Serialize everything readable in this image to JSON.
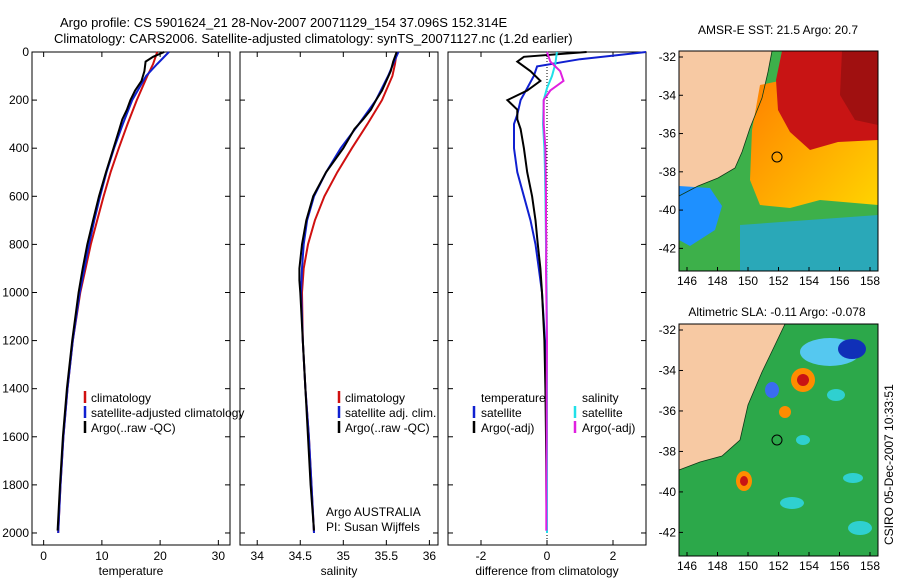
{
  "header": {
    "line1": "Argo profile: CS 5901624_21 28-Nov-2007 20071129_154 37.096S 152.314E",
    "line2": "Climatology: CARS2006. Satellite-adjusted climatology: synTS_20071127.nc (1.2d earlier)"
  },
  "colors": {
    "climatology": "#d01010",
    "satellite": "#1020d0",
    "argo": "#000000",
    "satellite_sal": "#20e0e8",
    "argo_sal_adj": "#e020e0",
    "land": "#f7c9a3"
  },
  "depth_axis": {
    "ylim": [
      2050,
      0
    ],
    "ticks": [
      0,
      200,
      400,
      600,
      800,
      1000,
      1200,
      1400,
      1600,
      1800,
      2000
    ]
  },
  "panels": {
    "temperature": {
      "xlabel": "temperature",
      "xticks": [
        0,
        10,
        20,
        30
      ],
      "legend": [
        "climatology",
        "satellite-adjusted climatology",
        "Argo(..raw -QC)"
      ]
    },
    "salinity": {
      "xlabel": "salinity",
      "xticks": [
        34,
        34.5,
        35,
        35.5,
        36
      ],
      "xtick_labels": [
        "34",
        "34.5",
        "35",
        "35.5",
        "36"
      ],
      "legend": [
        "climatology",
        "satellite adj. clim.",
        "Argo(..raw -QC)"
      ],
      "credit_line1": "Argo AUSTRALIA",
      "credit_line2": "PI: Susan Wijffels"
    },
    "difference": {
      "xlabel": "difference from climatology",
      "xticks": [
        -2,
        0,
        2
      ],
      "legend_t_title": "temperature",
      "legend_s_title": "salinity",
      "legend_t": [
        "satellite",
        "Argo(-adj)"
      ],
      "legend_s": [
        "satellite",
        "Argo(-adj)"
      ]
    }
  },
  "maps": {
    "sst": {
      "title": "AMSR-E SST: 21.5 Argo: 20.7",
      "yticks": [
        "-32",
        "-34",
        "-36",
        "-38",
        "-40",
        "-42"
      ],
      "xticks": [
        "146",
        "148",
        "150",
        "152",
        "154",
        "156",
        "158"
      ]
    },
    "sla": {
      "title": "Altimetric SLA: -0.11 Argo: -0.078",
      "yticks": [
        "-32",
        "-34",
        "-36",
        "-38",
        "-40",
        "-42"
      ],
      "xticks": [
        "146",
        "148",
        "150",
        "152",
        "154",
        "156",
        "158"
      ]
    },
    "float_position": {
      "lon": 152.314,
      "lat": -37.096
    }
  },
  "side_label": "CSIRO 05-Dec-2007 10:33:51",
  "chart_data": [
    {
      "type": "line",
      "xlabel": "temperature",
      "ylabel": "",
      "xlim": [
        -2,
        32
      ],
      "ylim": [
        2050,
        0
      ],
      "series": [
        {
          "name": "climatology",
          "depth": [
            0,
            50,
            100,
            200,
            300,
            400,
            500,
            600,
            700,
            800,
            900,
            1000,
            1200,
            1400,
            1600,
            1800,
            2000
          ],
          "values": [
            19.5,
            18.8,
            17.8,
            16.0,
            14.4,
            12.9,
            11.5,
            10.3,
            9.2,
            8.1,
            7.2,
            6.3,
            5.0,
            4.1,
            3.4,
            2.9,
            2.5
          ]
        },
        {
          "name": "satellite-adjusted climatology",
          "depth": [
            0,
            50,
            100,
            200,
            300,
            400,
            500,
            600,
            700,
            800,
            900,
            1000,
            1200,
            1400,
            1600,
            1800,
            2000
          ],
          "values": [
            21.5,
            19.5,
            17.6,
            15.2,
            13.6,
            12.1,
            10.8,
            9.7,
            8.7,
            7.8,
            7.0,
            6.2,
            5.0,
            4.1,
            3.4,
            2.9,
            2.5
          ]
        },
        {
          "name": "Argo(..raw -QC)",
          "depth": [
            0,
            20,
            40,
            80,
            120,
            160,
            200,
            240,
            280,
            320,
            400,
            500,
            600,
            700,
            800,
            900,
            1000,
            1200,
            1400,
            1600,
            1800,
            1990
          ],
          "values": [
            20.7,
            18.8,
            17.5,
            17.3,
            16.8,
            15.7,
            14.9,
            14.3,
            13.5,
            13.0,
            12.0,
            10.7,
            9.5,
            8.5,
            7.5,
            6.7,
            6.0,
            4.9,
            4.0,
            3.3,
            2.8,
            2.4
          ]
        }
      ]
    },
    {
      "type": "line",
      "xlabel": "salinity",
      "ylabel": "",
      "xlim": [
        33.8,
        36.1
      ],
      "ylim": [
        2050,
        0
      ],
      "series": [
        {
          "name": "climatology",
          "depth": [
            0,
            50,
            100,
            200,
            300,
            400,
            500,
            600,
            700,
            800,
            900,
            1000,
            1200,
            1400,
            1600,
            1800,
            2000
          ],
          "values": [
            35.62,
            35.6,
            35.57,
            35.45,
            35.28,
            35.1,
            34.93,
            34.78,
            34.67,
            34.59,
            34.54,
            34.52,
            34.53,
            34.56,
            34.6,
            34.63,
            34.66
          ]
        },
        {
          "name": "satellite adj. clim.",
          "depth": [
            0,
            50,
            100,
            200,
            300,
            400,
            500,
            600,
            700,
            800,
            900,
            1000,
            1200,
            1400,
            1600,
            1800,
            2000
          ],
          "values": [
            35.64,
            35.58,
            35.52,
            35.38,
            35.18,
            34.97,
            34.8,
            34.66,
            34.58,
            34.54,
            34.52,
            34.51,
            34.53,
            34.56,
            34.6,
            34.63,
            34.66
          ]
        },
        {
          "name": "Argo(..raw -QC)",
          "depth": [
            0,
            40,
            80,
            120,
            160,
            200,
            240,
            280,
            320,
            400,
            500,
            600,
            700,
            800,
            900,
            950,
            1000,
            1200,
            1400,
            1600,
            1800,
            1990
          ],
          "values": [
            35.62,
            35.58,
            35.55,
            35.5,
            35.45,
            35.38,
            35.32,
            35.23,
            35.13,
            35.0,
            34.8,
            34.65,
            34.57,
            34.52,
            34.49,
            34.49,
            34.5,
            34.53,
            34.56,
            34.59,
            34.62,
            34.66
          ]
        }
      ]
    },
    {
      "type": "line",
      "xlabel": "difference from climatology",
      "ylabel": "",
      "xlim": [
        -3.0,
        3.0
      ],
      "ylim": [
        2050,
        0
      ],
      "series": [
        {
          "name": "temperature satellite",
          "depth": [
            0,
            30,
            60,
            100,
            150,
            200,
            260,
            300,
            400,
            500,
            600,
            700,
            800,
            900,
            1000,
            1200,
            1400,
            1600,
            1800,
            2000
          ],
          "values": [
            3.0,
            1.0,
            -0.3,
            -0.4,
            -0.6,
            -0.8,
            -0.9,
            -1.0,
            -1.0,
            -0.9,
            -0.7,
            -0.5,
            -0.35,
            -0.25,
            -0.15,
            -0.06,
            -0.03,
            -0.02,
            -0.01,
            0.0
          ]
        },
        {
          "name": "temperature Argo(-adj)",
          "depth": [
            0,
            20,
            40,
            80,
            120,
            160,
            200,
            240,
            280,
            320,
            400,
            500,
            600,
            700,
            800,
            900,
            1000,
            1200,
            1400,
            1600,
            1800,
            1990
          ],
          "values": [
            1.2,
            -0.7,
            -0.9,
            -0.5,
            -0.2,
            -0.6,
            -1.2,
            -0.9,
            -0.9,
            -0.8,
            -0.7,
            -0.6,
            -0.45,
            -0.35,
            -0.28,
            -0.2,
            -0.15,
            -0.08,
            -0.05,
            -0.03,
            -0.02,
            -0.01
          ]
        },
        {
          "name": "salinity satellite",
          "depth": [
            0,
            50,
            100,
            150,
            200,
            300,
            400,
            500,
            600,
            700,
            800,
            900,
            1000,
            1200,
            1400,
            1600,
            1800,
            2000
          ],
          "values": [
            0.3,
            0.25,
            0.15,
            0.0,
            -0.1,
            -0.12,
            -0.08,
            -0.06,
            -0.05,
            -0.04,
            -0.03,
            -0.02,
            -0.01,
            0.0,
            0.0,
            0.0,
            0.0,
            0.0
          ]
        },
        {
          "name": "salinity Argo(-adj)",
          "depth": [
            0,
            40,
            80,
            120,
            160,
            200,
            260,
            300,
            400,
            500,
            600,
            700,
            800,
            900,
            1000,
            1200,
            1400,
            1600,
            1800,
            1990
          ],
          "values": [
            0.0,
            0.1,
            0.4,
            0.5,
            0.1,
            -0.1,
            -0.1,
            -0.1,
            -0.05,
            -0.04,
            -0.03,
            -0.03,
            -0.02,
            -0.03,
            -0.02,
            0.0,
            -0.01,
            -0.01,
            -0.02,
            -0.02
          ]
        }
      ]
    }
  ]
}
